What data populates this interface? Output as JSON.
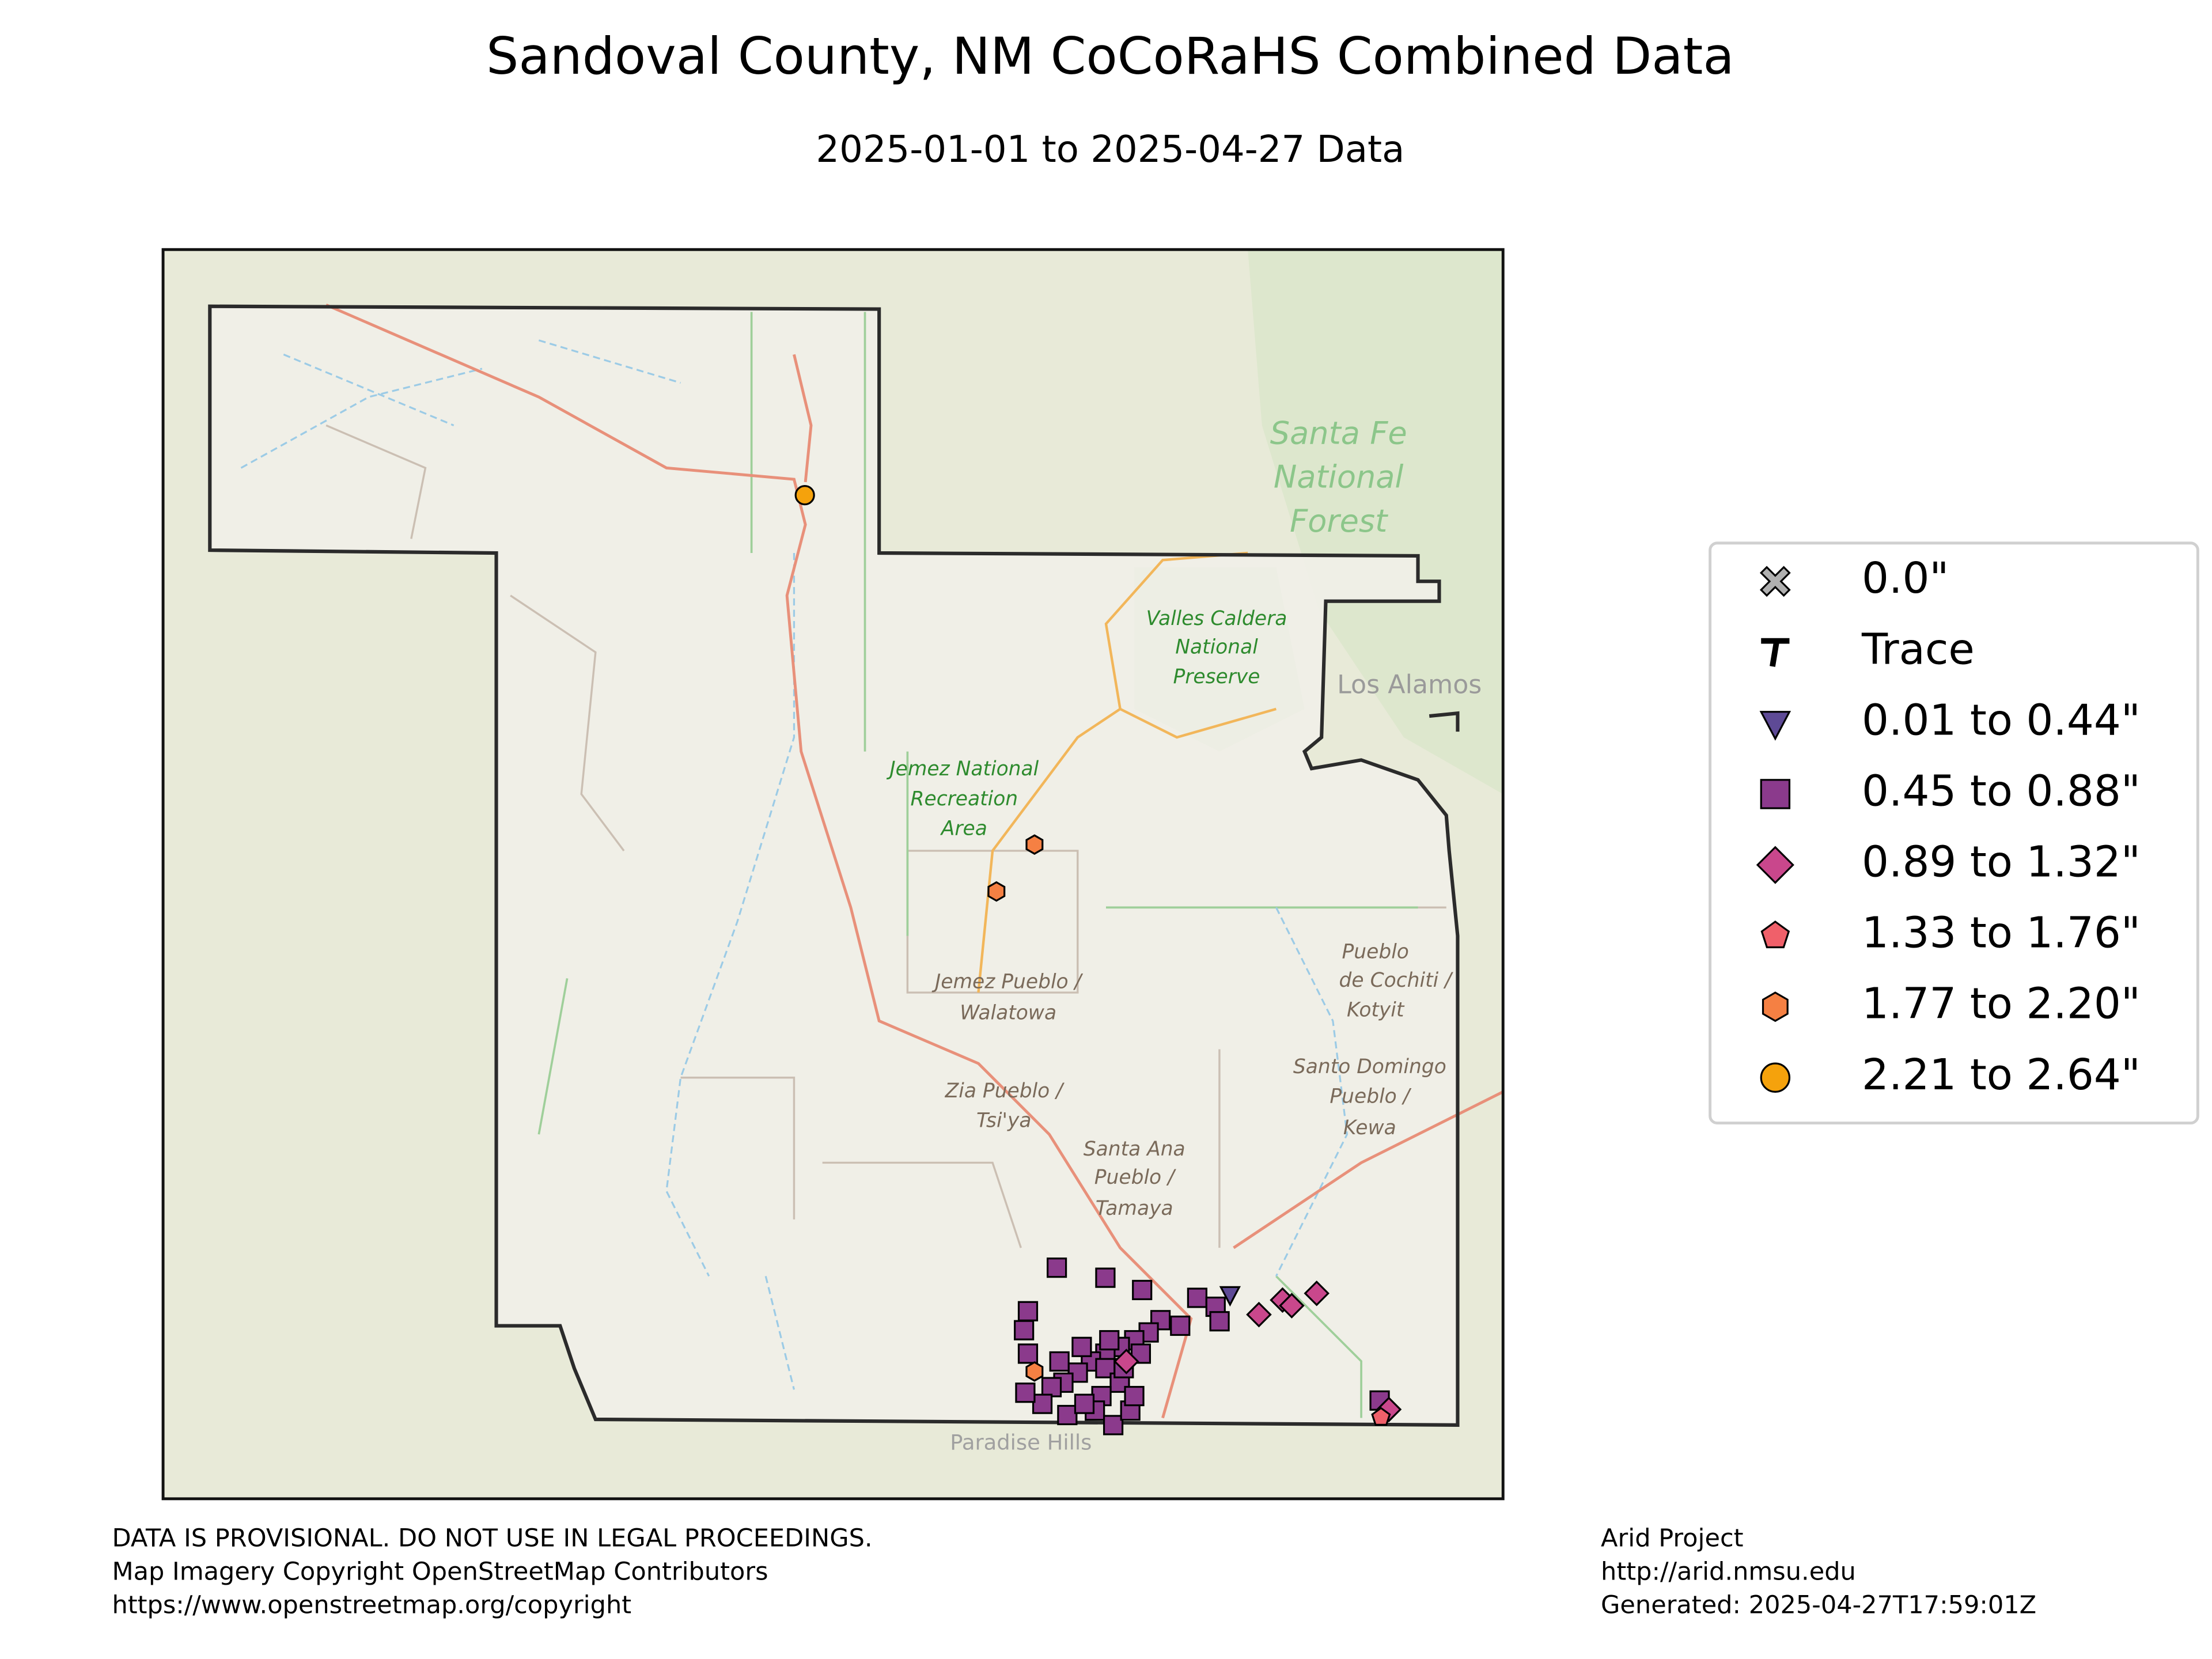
{
  "chart_data": {
    "type": "scatter",
    "title": "Sandoval County, NM CoCoRaHS Combined Data",
    "subtitle": "2025-01-01 to 2025-04-27 Data",
    "xlim": [
      -107.236,
      -106.215
    ],
    "ylim": [
      35.151,
      36.27
    ],
    "legend": "right",
    "series": [
      {
        "name": "0.0\"",
        "marker": "X",
        "color": "#b0b0b0",
        "x": [],
        "values": []
      },
      {
        "name": "Trace",
        "marker": "T",
        "color": "#000000",
        "x": [],
        "values": []
      },
      {
        "name": "0.01 to 0.44\"",
        "marker": "v",
        "color": "#5e4a96",
        "x": [
          -106.423
        ],
        "values": [
          35.334
        ]
      },
      {
        "name": "0.45 to 0.88\"",
        "marker": "s",
        "color": "#8b3a8c",
        "x": [
          -106.555,
          -106.518,
          -106.49,
          -106.448,
          -106.434,
          -106.431,
          -106.461,
          -106.476,
          -106.485,
          -106.496,
          -106.507,
          -106.518,
          -106.529,
          -106.539,
          -106.55,
          -106.559,
          -106.566,
          -106.579,
          -106.58,
          -106.577,
          -106.577,
          -106.518,
          -106.507,
          -106.521,
          -106.526,
          -106.547,
          -106.512,
          -106.499,
          -106.496,
          -106.534,
          -106.504,
          -106.491,
          -106.536,
          -106.553,
          -106.515,
          -106.309
        ],
        "values": [
          35.358,
          35.349,
          35.338,
          35.331,
          35.323,
          35.31,
          35.306,
          35.311,
          35.3,
          35.293,
          35.287,
          35.281,
          35.274,
          35.264,
          35.255,
          35.251,
          35.236,
          35.246,
          35.302,
          35.281,
          35.319,
          35.268,
          35.255,
          35.243,
          35.23,
          35.226,
          35.217,
          35.23,
          35.243,
          35.236,
          35.268,
          35.281,
          35.287,
          35.274,
          35.293,
          35.239
        ]
      },
      {
        "name": "0.89 to 1.32\"",
        "marker": "D",
        "color": "#c9478c",
        "x": [
          -106.401,
          -106.383,
          -106.376,
          -106.357,
          -106.502,
          -106.302
        ],
        "values": [
          35.316,
          35.329,
          35.324,
          35.335,
          35.274,
          35.231
        ]
      },
      {
        "name": "1.33 to 1.76\"",
        "marker": "p",
        "color": "#f0606a",
        "x": [
          -106.308
        ],
        "values": [
          35.224
        ]
      },
      {
        "name": "1.77 to 2.20\"",
        "marker": "h",
        "color": "#f58043",
        "x": [
          -106.572,
          -106.601,
          -106.572
        ],
        "values": [
          35.737,
          35.695,
          35.265
        ]
      },
      {
        "name": "2.21 to 2.64\"",
        "marker": "o",
        "color": "#f5a20c",
        "x": [
          -106.747
        ],
        "values": [
          36.05
        ]
      }
    ],
    "annotations": [
      "Santa Fe",
      "National",
      "Forest",
      "Valles Caldera",
      "National",
      "Preserve",
      "Jemez National",
      "Recreation",
      "Area",
      "Jemez Pueblo /",
      "Walatowa",
      "Zia Pueblo /",
      "Tsi'ya",
      "Santa Ana",
      "Pueblo /",
      "Tamaya",
      "Pueblo",
      "de Cochiti /",
      "Kotyit",
      "Santo Domingo",
      "Pueblo /",
      "Kewa",
      "Los Alamos",
      "Paradise Hills"
    ],
    "footer_left": [
      "DATA IS PROVISIONAL. DO NOT USE IN LEGAL PROCEEDINGS.",
      "Map Imagery Copyright OpenStreetMap Contributors",
      "https://www.openstreetmap.org/copyright"
    ],
    "footer_right": [
      "Arid Project",
      "http://arid.nmsu.edu",
      "Generated: 2025-04-27T17:59:01Z"
    ]
  }
}
